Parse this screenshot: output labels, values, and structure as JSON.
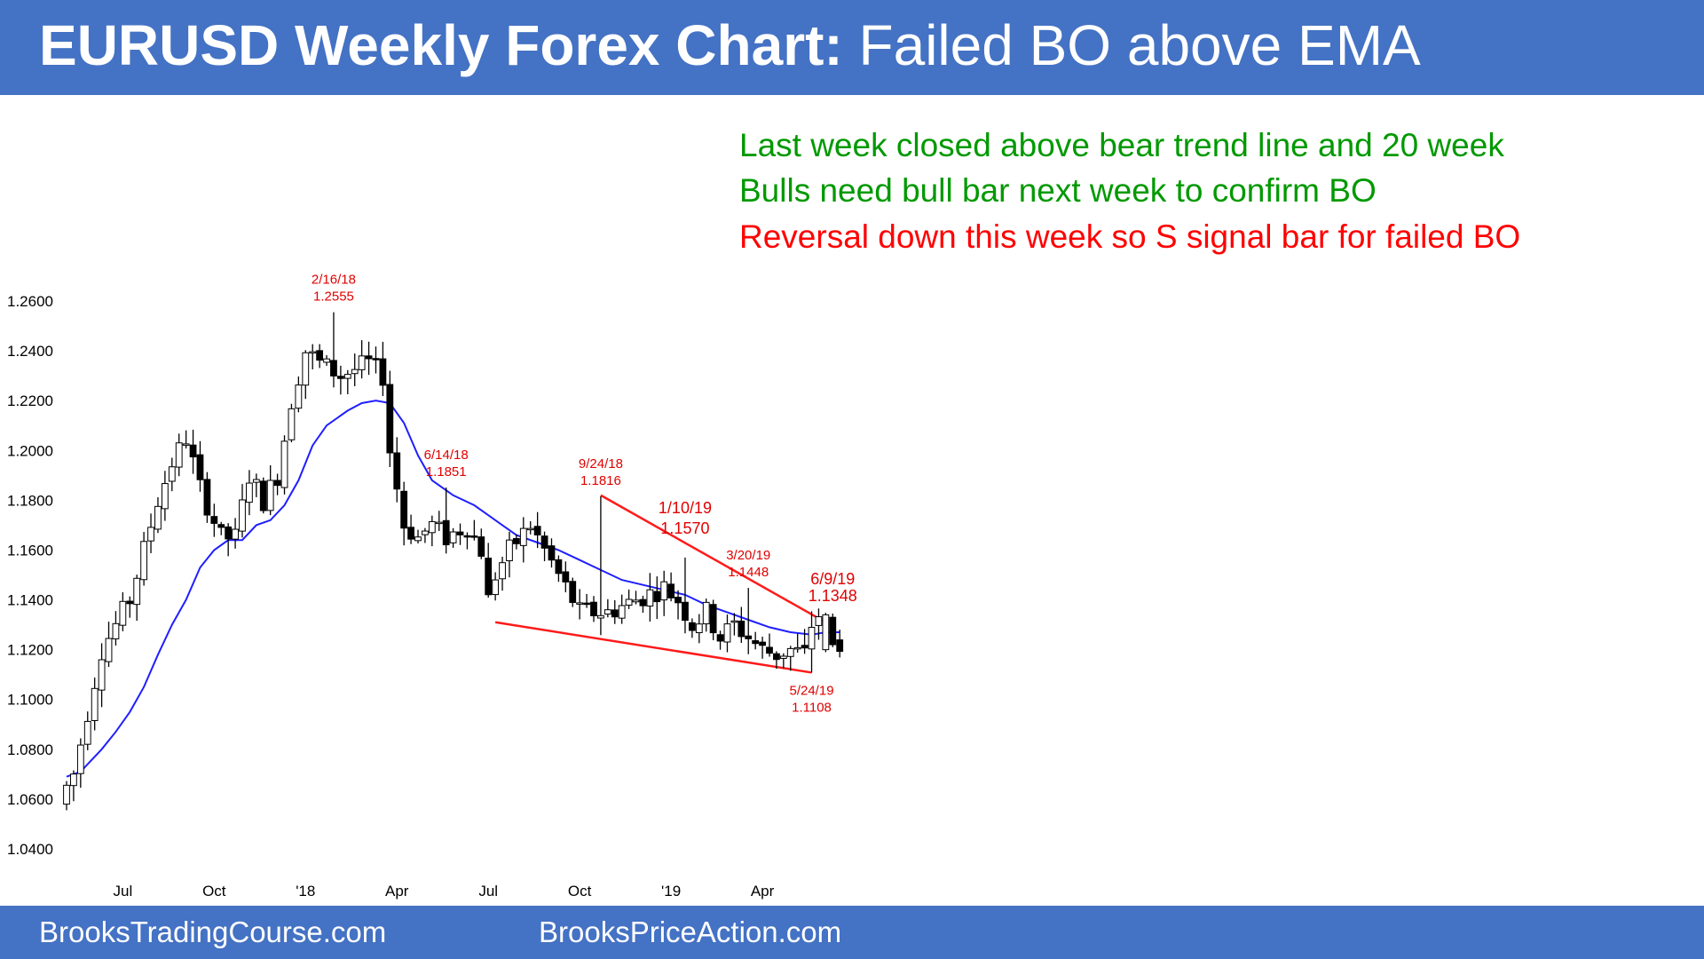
{
  "header": {
    "title_bold": "EURUSD Weekly Forex Chart:",
    "title_rest": " Failed BO above EMA"
  },
  "notes": [
    {
      "text": "Last week closed above bear trend line and 20 week",
      "color": "#009900"
    },
    {
      "text": "Bulls need bull bar next week to confirm BO",
      "color": "#009900"
    },
    {
      "text": "Reversal down this week so S signal bar for failed BO",
      "color": "#ff0000"
    }
  ],
  "footer": {
    "left_link": "BrooksTradingCourse.com",
    "right_link": "BrooksPriceAction.com"
  },
  "colors": {
    "header_bg": "#4472c4",
    "ema": "#1f1fff",
    "trendline": "#ff1a1a",
    "annotation": "#e00000",
    "bear_candle": "#000000",
    "bull_candle": "#ffffff"
  },
  "chart_data": {
    "type": "candlestick",
    "title": "",
    "xlabel": "",
    "ylabel": "",
    "ylim": [
      1.03,
      1.27
    ],
    "y_ticks": [
      "1.0400",
      "1.0600",
      "1.0800",
      "1.1000",
      "1.1200",
      "1.1400",
      "1.1600",
      "1.1800",
      "1.2000",
      "1.2200",
      "1.2400",
      "1.2600"
    ],
    "x_ticks": [
      {
        "label": "Jul",
        "week": 8
      },
      {
        "label": "Oct",
        "week": 21
      },
      {
        "label": "'18",
        "week": 34
      },
      {
        "label": "Apr",
        "week": 47
      },
      {
        "label": "Jul",
        "week": 60
      },
      {
        "label": "Oct",
        "week": 73
      },
      {
        "label": "'19",
        "week": 86
      },
      {
        "label": "Apr",
        "week": 99
      }
    ],
    "week_count": 111,
    "key_prices": [
      {
        "week": 0,
        "price": 1.06
      },
      {
        "week": 2,
        "price": 1.07
      },
      {
        "week": 4,
        "price": 1.095
      },
      {
        "week": 6,
        "price": 1.12
      },
      {
        "week": 8,
        "price": 1.13
      },
      {
        "week": 10,
        "price": 1.14
      },
      {
        "week": 12,
        "price": 1.16
      },
      {
        "week": 14,
        "price": 1.18
      },
      {
        "week": 16,
        "price": 1.195
      },
      {
        "week": 18,
        "price": 1.205
      },
      {
        "week": 20,
        "price": 1.185
      },
      {
        "week": 23,
        "price": 1.165
      },
      {
        "week": 25,
        "price": 1.165
      },
      {
        "week": 27,
        "price": 1.19
      },
      {
        "week": 29,
        "price": 1.18
      },
      {
        "week": 31,
        "price": 1.19
      },
      {
        "week": 33,
        "price": 1.22
      },
      {
        "week": 35,
        "price": 1.24
      },
      {
        "week": 37,
        "price": 1.235
      },
      {
        "week": 40,
        "price": 1.23
      },
      {
        "week": 44,
        "price": 1.235
      },
      {
        "week": 46,
        "price": 1.23
      },
      {
        "week": 47,
        "price": 1.2
      },
      {
        "week": 49,
        "price": 1.17
      },
      {
        "week": 51,
        "price": 1.165
      },
      {
        "week": 53,
        "price": 1.17
      },
      {
        "week": 55,
        "price": 1.165
      },
      {
        "week": 58,
        "price": 1.17
      },
      {
        "week": 60,
        "price": 1.16
      },
      {
        "week": 61,
        "price": 1.14
      },
      {
        "week": 62,
        "price": 1.15
      },
      {
        "week": 64,
        "price": 1.16
      },
      {
        "week": 67,
        "price": 1.17
      },
      {
        "week": 68,
        "price": 1.165
      },
      {
        "week": 70,
        "price": 1.155
      },
      {
        "week": 72,
        "price": 1.145
      },
      {
        "week": 74,
        "price": 1.135
      },
      {
        "week": 78,
        "price": 1.135
      },
      {
        "week": 82,
        "price": 1.14
      },
      {
        "week": 86,
        "price": 1.145
      },
      {
        "week": 88,
        "price": 1.14
      },
      {
        "week": 90,
        "price": 1.13
      },
      {
        "week": 92,
        "price": 1.135
      },
      {
        "week": 94,
        "price": 1.125
      },
      {
        "week": 96,
        "price": 1.13
      },
      {
        "week": 98,
        "price": 1.125
      },
      {
        "week": 100,
        "price": 1.12
      },
      {
        "week": 102,
        "price": 1.118
      },
      {
        "week": 104,
        "price": 1.12
      },
      {
        "week": 106,
        "price": 1.118
      },
      {
        "week": 107,
        "price": 1.13
      },
      {
        "week": 108,
        "price": 1.134
      },
      {
        "week": 110,
        "price": 1.123
      }
    ],
    "ema_points": [
      {
        "week": 0,
        "price": 1.069
      },
      {
        "week": 2,
        "price": 1.071
      },
      {
        "week": 3,
        "price": 1.074
      },
      {
        "week": 5,
        "price": 1.08
      },
      {
        "week": 7,
        "price": 1.087
      },
      {
        "week": 9,
        "price": 1.095
      },
      {
        "week": 11,
        "price": 1.105
      },
      {
        "week": 13,
        "price": 1.118
      },
      {
        "week": 15,
        "price": 1.13
      },
      {
        "week": 17,
        "price": 1.14
      },
      {
        "week": 19,
        "price": 1.153
      },
      {
        "week": 21,
        "price": 1.16
      },
      {
        "week": 23,
        "price": 1.164
      },
      {
        "week": 25,
        "price": 1.164
      },
      {
        "week": 27,
        "price": 1.17
      },
      {
        "week": 29,
        "price": 1.172
      },
      {
        "week": 31,
        "price": 1.178
      },
      {
        "week": 33,
        "price": 1.188
      },
      {
        "week": 35,
        "price": 1.202
      },
      {
        "week": 37,
        "price": 1.21
      },
      {
        "week": 40,
        "price": 1.216
      },
      {
        "week": 42,
        "price": 1.219
      },
      {
        "week": 44,
        "price": 1.22
      },
      {
        "week": 46,
        "price": 1.219
      },
      {
        "week": 48,
        "price": 1.211
      },
      {
        "week": 50,
        "price": 1.198
      },
      {
        "week": 52,
        "price": 1.188
      },
      {
        "week": 55,
        "price": 1.182
      },
      {
        "week": 58,
        "price": 1.178
      },
      {
        "week": 60,
        "price": 1.174
      },
      {
        "week": 62,
        "price": 1.17
      },
      {
        "week": 64,
        "price": 1.166
      },
      {
        "week": 67,
        "price": 1.163
      },
      {
        "week": 70,
        "price": 1.16
      },
      {
        "week": 73,
        "price": 1.156
      },
      {
        "week": 76,
        "price": 1.152
      },
      {
        "week": 79,
        "price": 1.148
      },
      {
        "week": 82,
        "price": 1.146
      },
      {
        "week": 85,
        "price": 1.144
      },
      {
        "week": 88,
        "price": 1.142
      },
      {
        "week": 91,
        "price": 1.138
      },
      {
        "week": 94,
        "price": 1.135
      },
      {
        "week": 97,
        "price": 1.132
      },
      {
        "week": 100,
        "price": 1.129
      },
      {
        "week": 103,
        "price": 1.127
      },
      {
        "week": 106,
        "price": 1.126
      },
      {
        "week": 108,
        "price": 1.127
      },
      {
        "week": 110,
        "price": 1.127
      }
    ],
    "trendlines": [
      {
        "name": "bear trend line",
        "from": {
          "week": 76,
          "price": 1.182
        },
        "to": {
          "week": 108,
          "price": 1.131
        }
      },
      {
        "name": "support line",
        "from": {
          "week": 61,
          "price": 1.131
        },
        "to": {
          "week": 106,
          "price": 1.1108
        }
      }
    ],
    "annotations": [
      {
        "date": "2/16/18",
        "price_label": "1.2555",
        "week": 38,
        "price": 1.2555,
        "side": "above"
      },
      {
        "date": "6/14/18",
        "price_label": "1.1851",
        "week": 54,
        "price": 1.1851,
        "side": "above"
      },
      {
        "date": "9/24/18",
        "price_label": "1.1816",
        "week": 76,
        "price": 1.1816,
        "side": "above"
      },
      {
        "date": "1/10/19",
        "price_label": "1.1570",
        "week": 88,
        "price": 1.157,
        "side": "above_far"
      },
      {
        "date": "3/20/19",
        "price_label": "1.1448",
        "week": 97,
        "price": 1.1448,
        "side": "above"
      },
      {
        "date": "6/9/19",
        "price_label": "1.1348",
        "week": 109,
        "price": 1.1348,
        "side": "above"
      },
      {
        "date": "5/24/19",
        "price_label": "1.1108",
        "week": 106,
        "price": 1.1108,
        "side": "below"
      }
    ]
  }
}
